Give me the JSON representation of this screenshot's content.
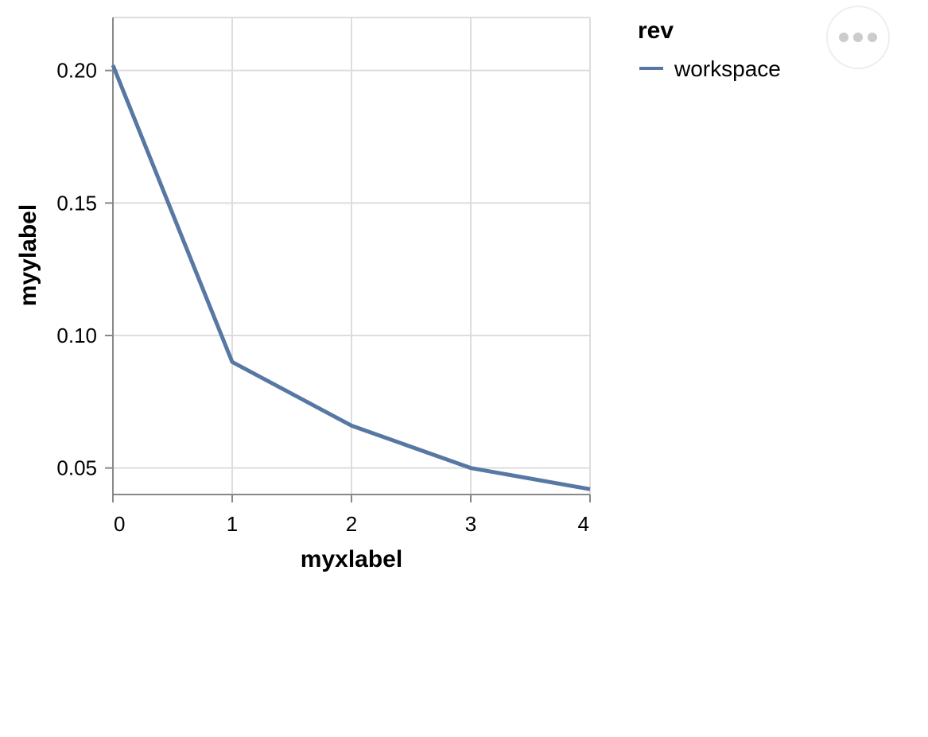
{
  "chart_data": {
    "type": "line",
    "xlabel": "myxlabel",
    "ylabel": "myylabel",
    "x": [
      0,
      1,
      2,
      3,
      4
    ],
    "x_ticks": [
      "0",
      "1",
      "2",
      "3",
      "4"
    ],
    "y_ticks": [
      "0.05",
      "0.10",
      "0.15",
      "0.20"
    ],
    "y_tick_values": [
      0.05,
      0.1,
      0.15,
      0.2
    ],
    "xlim": [
      0,
      4
    ],
    "ylim": [
      0.04,
      0.22
    ],
    "grid": true,
    "legend": {
      "title": "rev",
      "placement": "right"
    },
    "series": [
      {
        "name": "workspace",
        "color": "#5778a4",
        "values": [
          0.202,
          0.09,
          0.066,
          0.05,
          0.042
        ]
      }
    ]
  },
  "actions_menu": {
    "icon": "ellipsis-icon"
  }
}
